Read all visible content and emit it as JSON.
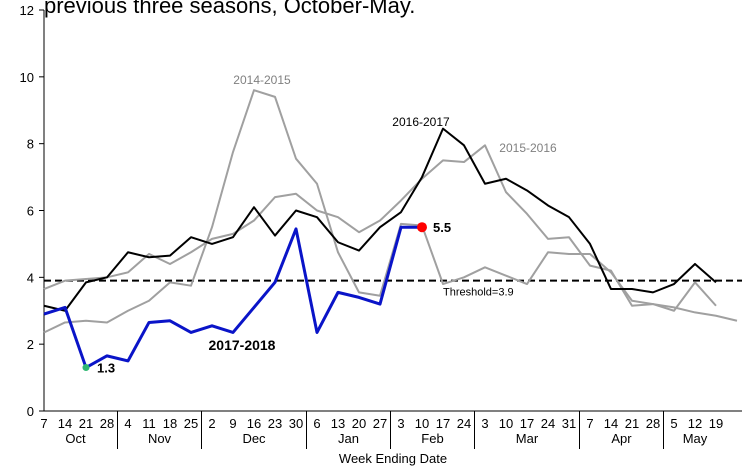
{
  "chart_data": {
    "type": "line",
    "title": "previous three seasons, October-May.",
    "xlabel": "Week Ending Date",
    "categories": [
      "7",
      "14",
      "21",
      "28",
      "4",
      "11",
      "18",
      "25",
      "2",
      "9",
      "16",
      "23",
      "30",
      "6",
      "13",
      "20",
      "27",
      "3",
      "10",
      "17",
      "24",
      "3",
      "10",
      "17",
      "24",
      "31",
      "7",
      "14",
      "21",
      "28",
      "5",
      "12",
      "19",
      null
    ],
    "month_groups": [
      {
        "label": "Oct",
        "weeks": 4
      },
      {
        "label": "Nov",
        "weeks": 4
      },
      {
        "label": "Dec",
        "weeks": 5
      },
      {
        "label": "Jan",
        "weeks": 4
      },
      {
        "label": "Feb",
        "weeks": 4
      },
      {
        "label": "Mar",
        "weeks": 5
      },
      {
        "label": "Apr",
        "weeks": 4
      },
      {
        "label": "May",
        "weeks": 3
      }
    ],
    "ylim": [
      0,
      12
    ],
    "yticks": [
      0,
      2,
      4,
      6,
      8,
      10,
      12
    ],
    "threshold": {
      "value": 3.9,
      "label": "Threshold=3.9"
    },
    "series": [
      {
        "name": "2014-2015",
        "color": "#a0a0a0",
        "values": [
          2.35,
          2.65,
          2.7,
          2.65,
          3.0,
          3.3,
          3.85,
          3.75,
          5.5,
          7.75,
          9.6,
          9.4,
          7.55,
          6.8,
          4.75,
          3.55,
          3.45,
          5.6,
          5.55,
          3.8,
          4.0,
          4.3,
          4.05,
          3.8,
          4.75,
          4.7,
          4.7,
          4.15,
          3.3,
          3.2,
          3.1,
          2.95,
          2.85,
          2.7
        ]
      },
      {
        "name": "2015-2016",
        "color": "#a0a0a0",
        "values": [
          3.65,
          3.9,
          3.95,
          4.0,
          4.15,
          4.7,
          4.4,
          4.75,
          5.15,
          5.3,
          5.7,
          6.4,
          6.5,
          6.0,
          5.8,
          5.35,
          5.7,
          6.3,
          6.95,
          7.5,
          7.45,
          7.95,
          6.55,
          5.9,
          5.15,
          5.2,
          4.35,
          4.2,
          3.15,
          3.2,
          3.0,
          3.85,
          3.15,
          null
        ]
      },
      {
        "name": "2016-2017",
        "color": "#000000",
        "values": [
          3.15,
          3.0,
          3.85,
          4.0,
          4.75,
          4.6,
          4.65,
          5.2,
          5.0,
          5.2,
          6.1,
          5.25,
          6.0,
          5.8,
          5.05,
          4.8,
          5.5,
          5.95,
          7.0,
          8.45,
          7.95,
          6.8,
          6.95,
          6.6,
          6.15,
          5.8,
          5.0,
          3.65,
          3.65,
          3.55,
          3.8,
          4.4,
          3.85,
          null
        ]
      },
      {
        "name": "2017-2018",
        "color": "#0a14c8",
        "values": [
          2.9,
          3.1,
          1.3,
          1.65,
          1.5,
          2.65,
          2.7,
          2.35,
          2.55,
          2.35,
          3.1,
          3.85,
          5.45,
          2.35,
          3.55,
          3.4,
          3.2,
          5.5,
          5.5,
          null,
          null,
          null,
          null,
          null,
          null,
          null,
          null,
          null,
          null,
          null,
          null,
          null,
          null,
          null
        ],
        "value_labels": [
          null,
          null,
          "1.3",
          null,
          null,
          null,
          null,
          null,
          null,
          null,
          null,
          null,
          null,
          null,
          null,
          null,
          null,
          null,
          "5.5",
          null,
          null,
          null,
          null,
          null,
          null,
          null,
          null,
          null,
          null,
          null,
          null,
          null,
          null,
          null
        ],
        "point_colors": [
          null,
          null,
          "#2eb872",
          null,
          null,
          null,
          null,
          null,
          null,
          null,
          null,
          null,
          null,
          null,
          null,
          null,
          null,
          null,
          "#ff0000",
          null,
          null,
          null,
          null,
          null,
          null,
          null,
          null,
          null,
          null,
          null,
          null,
          null,
          null,
          null
        ]
      }
    ]
  }
}
